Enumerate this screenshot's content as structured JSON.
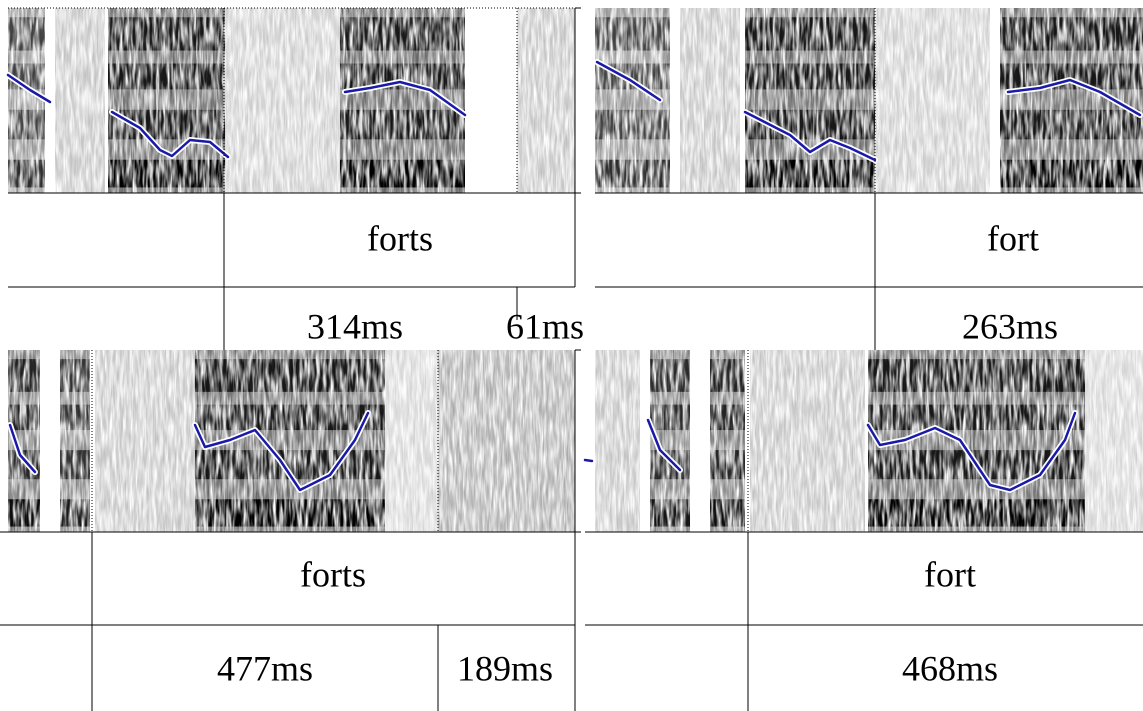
{
  "panels": [
    {
      "word": "forts",
      "durations": [
        "314ms",
        "61ms"
      ]
    },
    {
      "word": "fort",
      "durations": [
        "263ms"
      ]
    },
    {
      "word": "forts",
      "durations": [
        "477ms",
        "189ms"
      ]
    },
    {
      "word": "fort",
      "durations": [
        "468ms"
      ]
    }
  ]
}
